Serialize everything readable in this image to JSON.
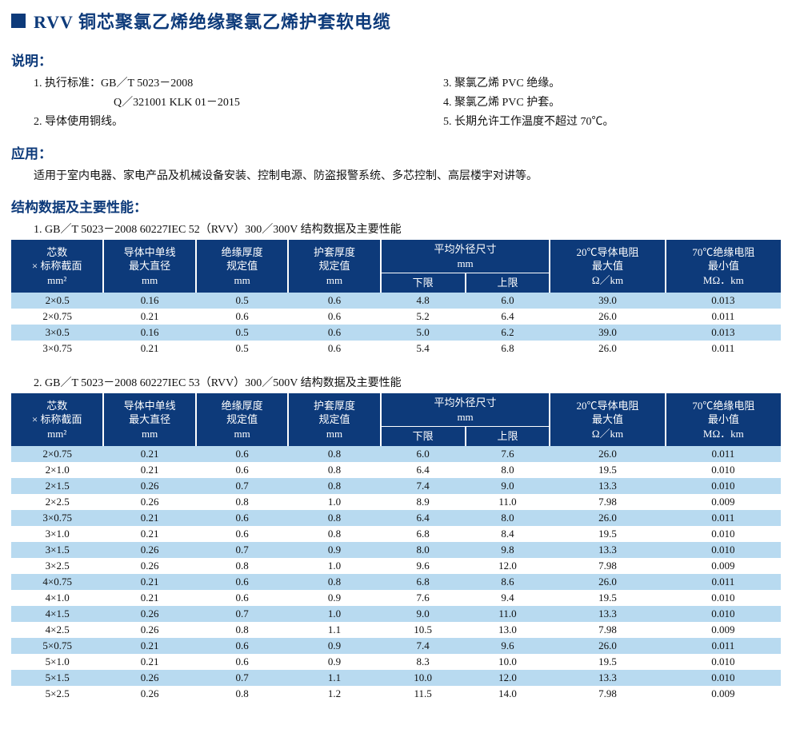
{
  "title": "RVV 铜芯聚氯乙烯绝缘聚氯乙烯护套软电缆",
  "description": {
    "heading": "说明：",
    "left": [
      "1. 执行标准：GB／T 5023－2008",
      "Q／321001 KLK 01－2015",
      "2. 导体使用铜线。"
    ],
    "right": [
      "3. 聚氯乙烯 PVC 绝缘。",
      "4. 聚氯乙烯 PVC 护套。",
      "5. 长期允许工作温度不超过 70℃。"
    ]
  },
  "application": {
    "heading": "应用：",
    "text": "适用于室内电器、家电产品及机械设备安装、控制电源、防盗报警系统、多芯控制、高层楼宇对讲等。"
  },
  "structure": {
    "heading": "结构数据及主要性能：",
    "colors": {
      "header_bg": "#0d3a7a",
      "header_fg": "#ffffff",
      "row_tint": "#b8daf0",
      "row_plain": "#ffffff",
      "accent": "#0d3a7a"
    },
    "headers": {
      "c0l1": "芯数",
      "c0l2": "× 标称截面",
      "c0l3": "mm²",
      "c1l1": "导体中单线",
      "c1l2": "最大直径",
      "c1l3": "mm",
      "c2l1": "绝缘厚度",
      "c2l2": "规定值",
      "c2l3": "mm",
      "c3l1": "护套厚度",
      "c3l2": "规定值",
      "c3l3": "mm",
      "c4l1": "平均外径尺寸",
      "c4l2": "mm",
      "c4sub1": "下限",
      "c4sub2": "上限",
      "c5l1": "20℃导体电阻",
      "c5l2": "最大值",
      "c5l3": "Ω／km",
      "c6l1": "70℃绝缘电阻",
      "c6l2": "最小值",
      "c6l3": "MΩ．km"
    },
    "table1": {
      "caption": "1. GB／T 5023－2008 60227IEC 52（RVV）300／300V 结构数据及主要性能",
      "rows": [
        [
          "2×0.5",
          "0.16",
          "0.5",
          "0.6",
          "4.8",
          "6.0",
          "39.0",
          "0.013"
        ],
        [
          "2×0.75",
          "0.21",
          "0.6",
          "0.6",
          "5.2",
          "6.4",
          "26.0",
          "0.011"
        ],
        [
          "3×0.5",
          "0.16",
          "0.5",
          "0.6",
          "5.0",
          "6.2",
          "39.0",
          "0.013"
        ],
        [
          "3×0.75",
          "0.21",
          "0.5",
          "0.6",
          "5.4",
          "6.8",
          "26.0",
          "0.011"
        ]
      ]
    },
    "table2": {
      "caption": "2. GB／T 5023－2008 60227IEC 53（RVV）300／500V 结构数据及主要性能",
      "rows": [
        [
          "2×0.75",
          "0.21",
          "0.6",
          "0.8",
          "6.0",
          "7.6",
          "26.0",
          "0.011"
        ],
        [
          "2×1.0",
          "0.21",
          "0.6",
          "0.8",
          "6.4",
          "8.0",
          "19.5",
          "0.010"
        ],
        [
          "2×1.5",
          "0.26",
          "0.7",
          "0.8",
          "7.4",
          "9.0",
          "13.3",
          "0.010"
        ],
        [
          "2×2.5",
          "0.26",
          "0.8",
          "1.0",
          "8.9",
          "11.0",
          "7.98",
          "0.009"
        ],
        [
          "3×0.75",
          "0.21",
          "0.6",
          "0.8",
          "6.4",
          "8.0",
          "26.0",
          "0.011"
        ],
        [
          "3×1.0",
          "0.21",
          "0.6",
          "0.8",
          "6.8",
          "8.4",
          "19.5",
          "0.010"
        ],
        [
          "3×1.5",
          "0.26",
          "0.7",
          "0.9",
          "8.0",
          "9.8",
          "13.3",
          "0.010"
        ],
        [
          "3×2.5",
          "0.26",
          "0.8",
          "1.0",
          "9.6",
          "12.0",
          "7.98",
          "0.009"
        ],
        [
          "4×0.75",
          "0.21",
          "0.6",
          "0.8",
          "6.8",
          "8.6",
          "26.0",
          "0.011"
        ],
        [
          "4×1.0",
          "0.21",
          "0.6",
          "0.9",
          "7.6",
          "9.4",
          "19.5",
          "0.010"
        ],
        [
          "4×1.5",
          "0.26",
          "0.7",
          "1.0",
          "9.0",
          "11.0",
          "13.3",
          "0.010"
        ],
        [
          "4×2.5",
          "0.26",
          "0.8",
          "1.1",
          "10.5",
          "13.0",
          "7.98",
          "0.009"
        ],
        [
          "5×0.75",
          "0.21",
          "0.6",
          "0.9",
          "7.4",
          "9.6",
          "26.0",
          "0.011"
        ],
        [
          "5×1.0",
          "0.21",
          "0.6",
          "0.9",
          "8.3",
          "10.0",
          "19.5",
          "0.010"
        ],
        [
          "5×1.5",
          "0.26",
          "0.7",
          "1.1",
          "10.0",
          "12.0",
          "13.3",
          "0.010"
        ],
        [
          "5×2.5",
          "0.26",
          "0.8",
          "1.2",
          "11.5",
          "14.0",
          "7.98",
          "0.009"
        ]
      ]
    }
  }
}
